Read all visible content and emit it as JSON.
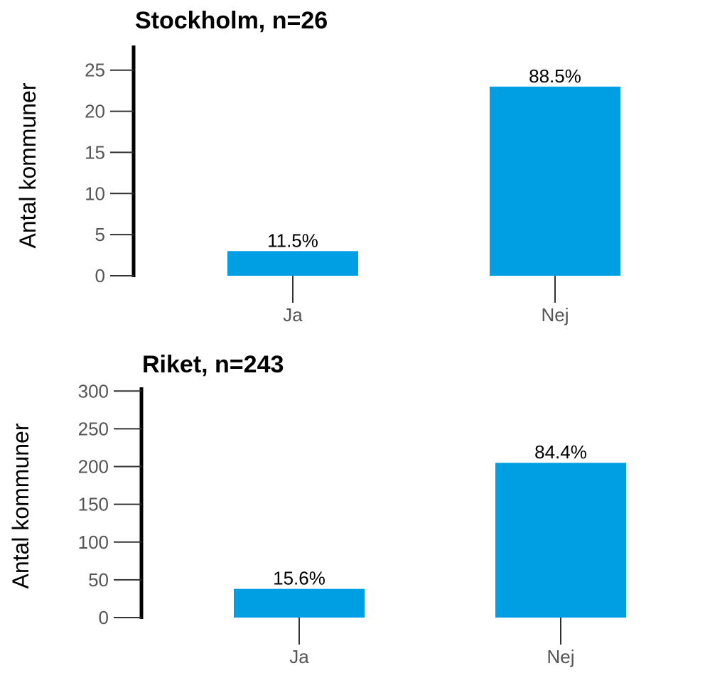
{
  "chart_data": [
    {
      "type": "bar",
      "title": "Stockholm, n=26",
      "ylabel": "Antal kommuner",
      "categories": [
        "Ja",
        "Nej"
      ],
      "values": [
        3,
        23
      ],
      "data_labels": [
        "11.5%",
        "88.5%"
      ],
      "yticks": [
        0,
        5,
        10,
        15,
        20,
        25
      ],
      "ylim": [
        0,
        28
      ],
      "color": "#009ee3"
    },
    {
      "type": "bar",
      "title": "Riket, n=243",
      "ylabel": "Antal kommuner",
      "categories": [
        "Ja",
        "Nej"
      ],
      "values": [
        38,
        205
      ],
      "data_labels": [
        "15.6%",
        "84.4%"
      ],
      "yticks": [
        0,
        50,
        100,
        150,
        200,
        250,
        300
      ],
      "ylim": [
        0,
        305
      ],
      "color": "#009ee3"
    }
  ]
}
